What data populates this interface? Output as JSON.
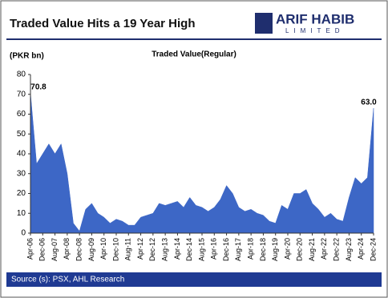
{
  "logo": {
    "name": "ARIF HABIB",
    "tagline": "LIMITED"
  },
  "source": "Source (s): PSX, AHL Research",
  "chart_data": {
    "type": "area",
    "title": "Traded Value Hits a 19 Year High",
    "subtitle": "Traded Value(Regular)",
    "y_label": "(PKR bn)",
    "color": "#3d67c6",
    "categories": [
      "Apr-06",
      null,
      "Dec-06",
      null,
      "Aug-07",
      null,
      "Apr-08",
      null,
      "Dec-08",
      null,
      "Aug-09",
      null,
      "Apr-10",
      null,
      "Dec-10",
      null,
      "Aug-11",
      null,
      "Apr-12",
      null,
      "Dec-12",
      null,
      "Aug-13",
      null,
      "Apr-14",
      null,
      "Dec-14",
      null,
      "Aug-15",
      null,
      "Apr-16",
      null,
      "Dec-16",
      null,
      "Aug-17",
      null,
      "Apr-18",
      null,
      "Dec-18",
      null,
      "Aug-19",
      null,
      "Apr-20",
      null,
      "Dec-20",
      null,
      "Aug-21",
      null,
      "Apr-22",
      null,
      "Dec-22",
      null,
      "Aug-23",
      null,
      "Apr-24",
      null,
      "Dec-24"
    ],
    "values": [
      70.8,
      35,
      40,
      45,
      40,
      45,
      30,
      5,
      1,
      12,
      15,
      10,
      8,
      5,
      7,
      6,
      4,
      4,
      8,
      9,
      10,
      15,
      14,
      15,
      16,
      13,
      18,
      14,
      13,
      11,
      13,
      17,
      24,
      20,
      13,
      11,
      12,
      10,
      9,
      6,
      5,
      14,
      12,
      20,
      20,
      22,
      15,
      12,
      8,
      10,
      7,
      6,
      18,
      28,
      25,
      28,
      63.0
    ],
    "value_labels": [
      "70.8",
      null,
      null,
      null,
      null,
      null,
      null,
      null,
      null,
      null,
      null,
      null,
      null,
      null,
      null,
      null,
      null,
      null,
      null,
      null,
      null,
      null,
      null,
      null,
      null,
      null,
      null,
      null,
      null,
      null,
      null,
      null,
      null,
      null,
      null,
      null,
      null,
      null,
      null,
      null,
      null,
      null,
      null,
      null,
      null,
      null,
      null,
      null,
      null,
      null,
      null,
      null,
      null,
      null,
      null,
      null,
      "63.0"
    ],
    "ylim": [
      0,
      80
    ],
    "yticks": [
      0,
      10,
      20,
      30,
      40,
      50,
      60,
      70,
      80
    ],
    "grid": false
  }
}
